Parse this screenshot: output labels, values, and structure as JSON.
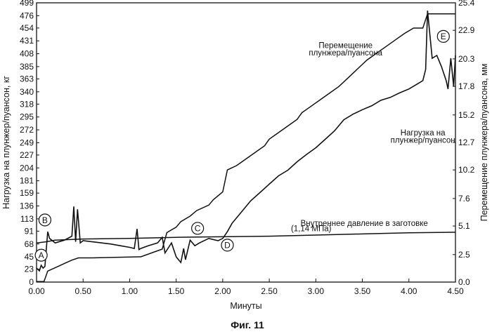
{
  "chart_data": {
    "type": "line",
    "xlabel": "Минуты",
    "ylabel_left": "Нагрузка на плунжер/пуансон, кг",
    "ylabel_right": "Перемещение плунжера/пуансона, мм",
    "caption": "Фиг. 11",
    "xlim": [
      0,
      4.5
    ],
    "ylim_left": [
      0,
      499
    ],
    "ylim_right": [
      0,
      25.4
    ],
    "x_ticks": [
      "0.00",
      "0.50",
      "1.00",
      "1.50",
      "2.00",
      "2.50",
      "3.00",
      "3.50",
      "4.00",
      "4.50"
    ],
    "y_ticks_left": [
      "0",
      "23",
      "45",
      "68",
      "91",
      "113",
      "136",
      "159",
      "181",
      "204",
      "227",
      "249",
      "272",
      "295",
      "318",
      "340",
      "363",
      "385",
      "408",
      "431",
      "454",
      "476",
      "499"
    ],
    "y_ticks_right": [
      "0.0",
      "2.5",
      "5.1",
      "7.6",
      "10.2",
      "12.7",
      "15.2",
      "17.8",
      "20.3",
      "22.9",
      "25.4"
    ],
    "annotations": [
      {
        "text": "Перемещение",
        "x": 3.32,
        "y": 418
      },
      {
        "text": "плунжера/пуансона",
        "x": 3.32,
        "y": 405
      },
      {
        "text": "Нагрузка на",
        "x": 4.15,
        "y": 262
      },
      {
        "text": "плунжер/пуансон",
        "x": 4.15,
        "y": 249
      },
      {
        "text": "Внутреннее давление в заготовке",
        "x": 3.52,
        "y": 100
      },
      {
        "text": "(1,14 МПа)",
        "x": 2.95,
        "y": 91
      }
    ],
    "markers": [
      {
        "label": "A",
        "x": 0.05,
        "y": 48
      },
      {
        "label": "B",
        "x": 0.09,
        "y": 111
      },
      {
        "label": "C",
        "x": 1.73,
        "y": 96
      },
      {
        "label": "D",
        "x": 2.05,
        "y": 66
      },
      {
        "label": "E",
        "x": 4.37,
        "y": 439
      }
    ],
    "series": [
      {
        "axis": "right",
        "x": [
          0.0,
          0.08,
          0.12,
          0.2,
          0.3,
          0.38,
          0.45,
          0.6,
          1.1,
          1.12,
          1.35,
          1.4,
          1.5,
          1.55,
          1.65,
          1.72,
          1.85,
          1.9,
          2.0,
          2.05,
          2.15,
          2.25,
          2.35,
          2.45,
          2.5,
          2.6,
          2.7,
          2.8,
          2.85,
          2.95,
          3.05,
          3.15,
          3.25,
          3.35,
          3.45,
          3.55,
          3.65,
          3.75,
          3.85,
          3.95,
          4.05,
          4.15,
          4.2,
          4.25,
          4.5
        ],
        "y": [
          0.05,
          0.05,
          1.0,
          1.3,
          1.7,
          2.0,
          2.2,
          2.2,
          2.3,
          2.3,
          3.0,
          4.5,
          5.0,
          5.5,
          6.0,
          6.5,
          7.0,
          7.5,
          8.2,
          10.2,
          10.6,
          11.2,
          11.8,
          12.4,
          13.0,
          13.6,
          14.2,
          14.8,
          15.4,
          16.0,
          16.6,
          17.2,
          17.8,
          18.6,
          19.4,
          20.2,
          20.8,
          21.4,
          22.0,
          22.6,
          23.1,
          23.1,
          24.4,
          24.4,
          24.4
        ]
      },
      {
        "axis": "left",
        "x": [
          0.0,
          0.03,
          0.05,
          0.07,
          0.09,
          0.12,
          0.14,
          0.2,
          0.3,
          0.38,
          0.4,
          0.42,
          0.44,
          0.47,
          0.5,
          0.6,
          0.7,
          0.8,
          0.9,
          1.0,
          1.05,
          1.08,
          1.1,
          1.12,
          1.2,
          1.3,
          1.35,
          1.38,
          1.45,
          1.5,
          1.55,
          1.58,
          1.6,
          1.65,
          1.7,
          1.75,
          1.85,
          1.95,
          2.0,
          2.05,
          2.1,
          2.2,
          2.3,
          2.4,
          2.5,
          2.6,
          2.7,
          2.8,
          2.9,
          3.0,
          3.1,
          3.2,
          3.3,
          3.4,
          3.5,
          3.6,
          3.7,
          3.8,
          3.9,
          4.0,
          4.1,
          4.15,
          4.18,
          4.2,
          4.25,
          4.3,
          4.35,
          4.4,
          4.42,
          4.45,
          4.48,
          4.5
        ],
        "y": [
          25,
          20,
          30,
          25,
          28,
          90,
          78,
          70,
          75,
          82,
          135,
          72,
          130,
          70,
          74,
          72,
          70,
          68,
          65,
          62,
          60,
          95,
          58,
          60,
          65,
          70,
          80,
          52,
          70,
          45,
          35,
          60,
          40,
          75,
          65,
          70,
          78,
          74,
          78,
          90,
          105,
          125,
          145,
          160,
          175,
          190,
          200,
          215,
          228,
          240,
          255,
          270,
          290,
          300,
          308,
          315,
          325,
          330,
          338,
          345,
          355,
          360,
          380,
          485,
          400,
          405,
          385,
          360,
          345,
          400,
          350,
          405
        ]
      },
      {
        "axis": "left",
        "x": [
          0.0,
          0.1,
          0.2,
          0.5,
          1.0,
          1.5,
          2.0,
          2.5,
          3.0,
          3.5,
          4.0,
          4.5
        ],
        "y": [
          70,
          72,
          75,
          77,
          78,
          80,
          81,
          82,
          84,
          86,
          88,
          89
        ]
      }
    ]
  }
}
